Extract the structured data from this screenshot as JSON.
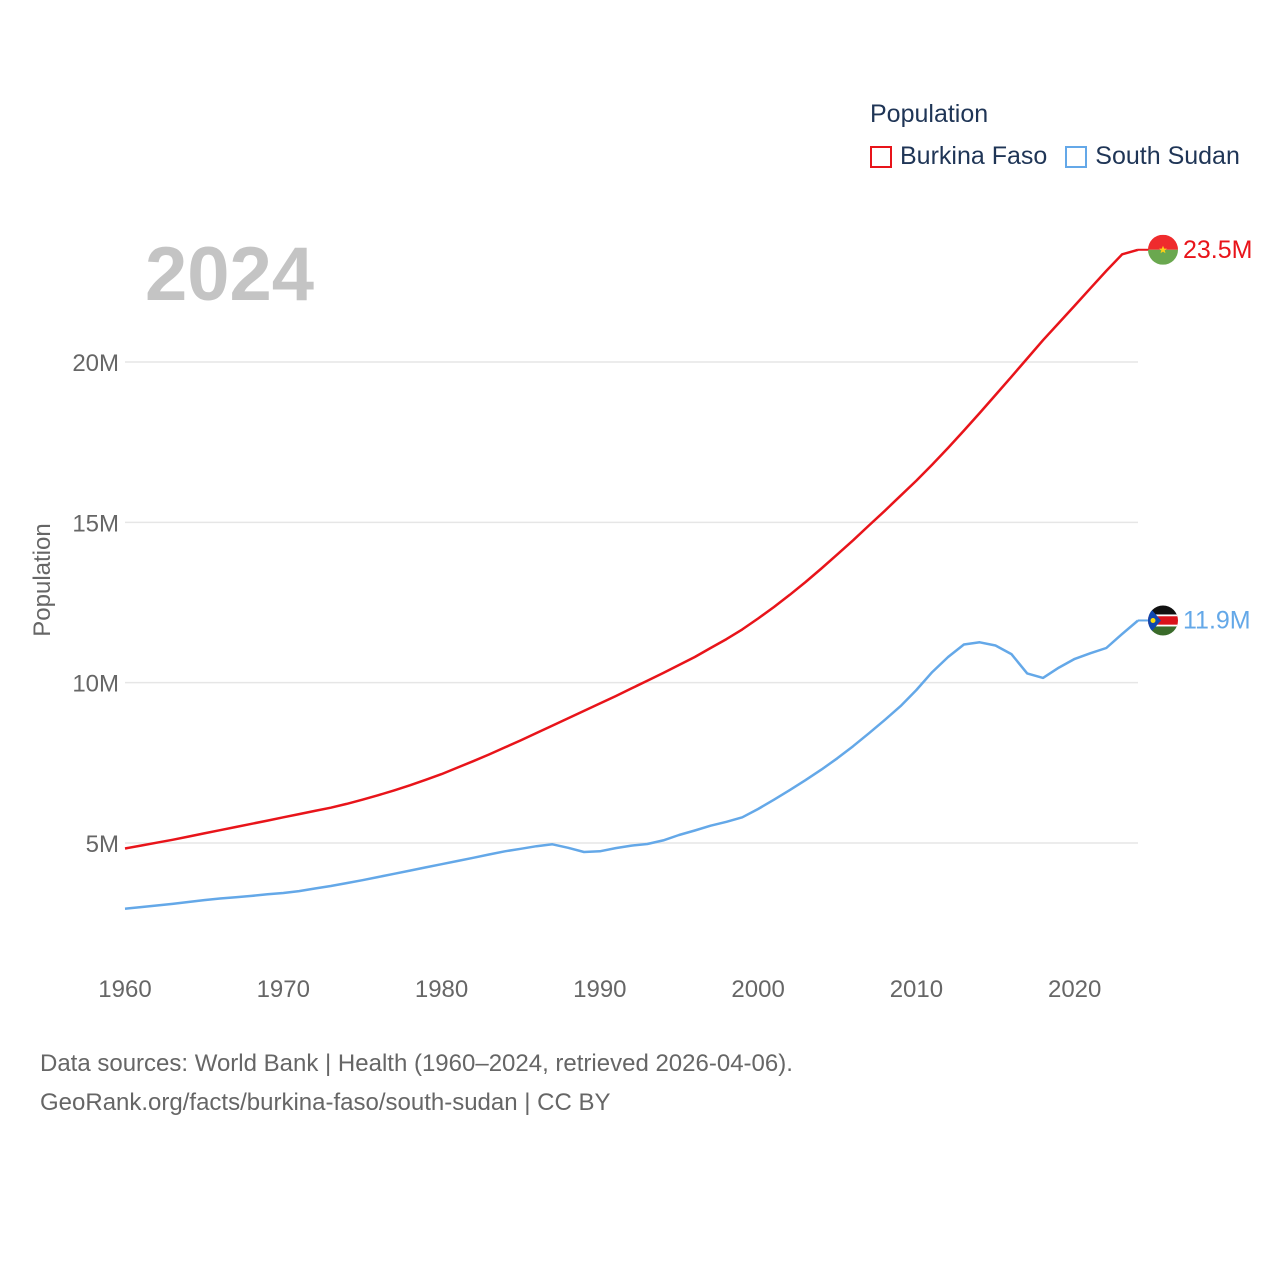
{
  "colors": {
    "burkina": "#e8141a",
    "south_sudan": "#64a8e8",
    "grid": "#e6e6e6",
    "axis_text": "#666666",
    "year": "#c4c4c4"
  },
  "legend": {
    "title": "Population",
    "items": [
      {
        "label": "Burkina Faso",
        "color": "#e8141a"
      },
      {
        "label": "South Sudan",
        "color": "#64a8e8"
      }
    ]
  },
  "footer": {
    "line1": "Data sources: World Bank | Health (1960–2024, retrieved 2026-04-06).",
    "line2": "GeoRank.org/facts/burkina-faso/south-sudan | CC BY"
  },
  "chart_data": {
    "type": "line",
    "title": "Population",
    "current_year": "2024",
    "xlabel": "",
    "ylabel": "Population",
    "xlim": [
      1960,
      2024
    ],
    "ylim": [
      1500000,
      25000000
    ],
    "x_ticks": [
      1960,
      1970,
      1980,
      1990,
      2000,
      2010,
      2020
    ],
    "x_tick_labels": [
      "1960",
      "1970",
      "1980",
      "1990",
      "2000",
      "2010",
      "2020"
    ],
    "y_ticks": [
      5000000,
      10000000,
      15000000,
      20000000
    ],
    "y_tick_labels": [
      "5M",
      "10M",
      "15M",
      "20M"
    ],
    "x": [
      1960,
      1961,
      1962,
      1963,
      1964,
      1965,
      1966,
      1967,
      1968,
      1969,
      1970,
      1971,
      1972,
      1973,
      1974,
      1975,
      1976,
      1977,
      1978,
      1979,
      1980,
      1981,
      1982,
      1983,
      1984,
      1985,
      1986,
      1987,
      1988,
      1989,
      1990,
      1991,
      1992,
      1993,
      1994,
      1995,
      1996,
      1997,
      1998,
      1999,
      2000,
      2001,
      2002,
      2003,
      2004,
      2005,
      2006,
      2007,
      2008,
      2009,
      2010,
      2011,
      2012,
      2013,
      2014,
      2015,
      2016,
      2017,
      2018,
      2019,
      2020,
      2021,
      2022,
      2023,
      2024
    ],
    "series": [
      {
        "name": "Burkina Faso",
        "end_label": "23.5M",
        "values": [
          4830000,
          4920000,
          5010000,
          5100000,
          5200000,
          5300000,
          5400000,
          5500000,
          5600000,
          5700000,
          5800000,
          5900000,
          6000000,
          6100000,
          6220000,
          6350000,
          6490000,
          6640000,
          6800000,
          6970000,
          7150000,
          7350000,
          7550000,
          7760000,
          7980000,
          8200000,
          8430000,
          8660000,
          8890000,
          9120000,
          9350000,
          9580000,
          9820000,
          10060000,
          10300000,
          10550000,
          10800000,
          11080000,
          11360000,
          11660000,
          12000000,
          12360000,
          12740000,
          13140000,
          13560000,
          14000000,
          14440000,
          14900000,
          15360000,
          15830000,
          16300000,
          16800000,
          17320000,
          17860000,
          18410000,
          18970000,
          19540000,
          20110000,
          20680000,
          21220000,
          21760000,
          22300000,
          22840000,
          23360000,
          23500000
        ]
      },
      {
        "name": "South Sudan",
        "end_label": "11.9M",
        "values": [
          2950000,
          3000000,
          3050000,
          3100000,
          3160000,
          3220000,
          3270000,
          3310000,
          3350000,
          3400000,
          3440000,
          3500000,
          3580000,
          3660000,
          3750000,
          3840000,
          3940000,
          4040000,
          4140000,
          4240000,
          4340000,
          4440000,
          4540000,
          4640000,
          4740000,
          4820000,
          4900000,
          4960000,
          4850000,
          4720000,
          4740000,
          4840000,
          4920000,
          4970000,
          5080000,
          5250000,
          5390000,
          5540000,
          5660000,
          5800000,
          6060000,
          6350000,
          6650000,
          6960000,
          7290000,
          7640000,
          8020000,
          8420000,
          8840000,
          9270000,
          9770000,
          10330000,
          10800000,
          11190000,
          11260000,
          11160000,
          10890000,
          10290000,
          10150000,
          10470000,
          10740000,
          10920000,
          11080000,
          11520000,
          11940000
        ]
      }
    ]
  }
}
